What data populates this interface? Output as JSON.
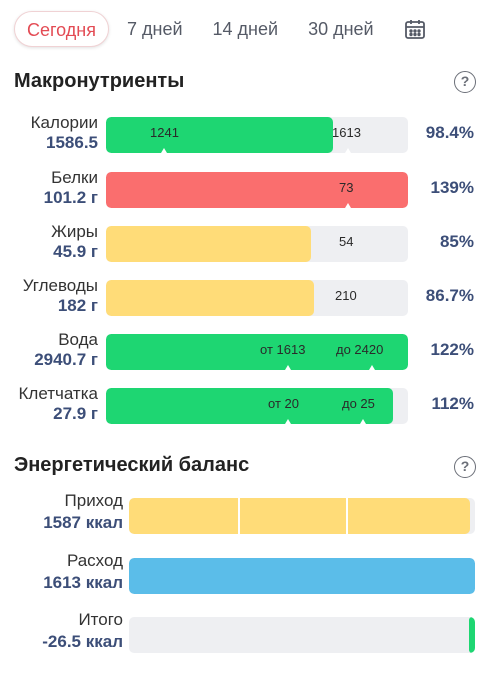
{
  "tabs": [
    {
      "label": "Сегодня",
      "active": true
    },
    {
      "label": "7 дней",
      "active": false
    },
    {
      "label": "14 дней",
      "active": false
    },
    {
      "label": "30 дней",
      "active": false
    }
  ],
  "macros": {
    "title": "Макронутриенты",
    "help": "?",
    "rows": [
      {
        "name": "Калории",
        "value": "1586.5",
        "percent": "98.4%",
        "fill_fraction": 0.75,
        "color": "#1ed672",
        "markers": [
          "1241",
          "1613"
        ]
      },
      {
        "name": "Белки",
        "value": "101.2 г",
        "percent": "139%",
        "fill_fraction": 1.0,
        "color": "#fa6e6e",
        "markers": [
          "73"
        ]
      },
      {
        "name": "Жиры",
        "value": "45.9 г",
        "percent": "85%",
        "fill_fraction": 0.68,
        "color": "#ffdc78",
        "markers": [
          "54"
        ]
      },
      {
        "name": "Углеводы",
        "value": "182 г",
        "percent": "86.7%",
        "fill_fraction": 0.69,
        "color": "#ffdc78",
        "markers": [
          "210"
        ]
      },
      {
        "name": "Вода",
        "value": "2940.7 г",
        "percent": "122%",
        "fill_fraction": 1.0,
        "color": "#1ed672",
        "markers": [
          "от 1613",
          "до 2420"
        ]
      },
      {
        "name": "Клетчатка",
        "value": "27.9 г",
        "percent": "112%",
        "fill_fraction": 0.95,
        "color": "#1ed672",
        "markers": [
          "от 20",
          "до 25"
        ]
      }
    ]
  },
  "balance": {
    "title": "Энергетический баланс",
    "help": "?",
    "rows": [
      {
        "name": "Приход",
        "value": "1587 ккал",
        "fill_fraction": 0.985,
        "color": "#ffdc78"
      },
      {
        "name": "Расход",
        "value": "1613 ккал",
        "fill_fraction": 1.0,
        "color": "#5bbde9"
      },
      {
        "name": "Итого",
        "value": "-26.5 ккал",
        "fill_fraction": 0.016,
        "color": "#1ed672"
      }
    ]
  }
}
